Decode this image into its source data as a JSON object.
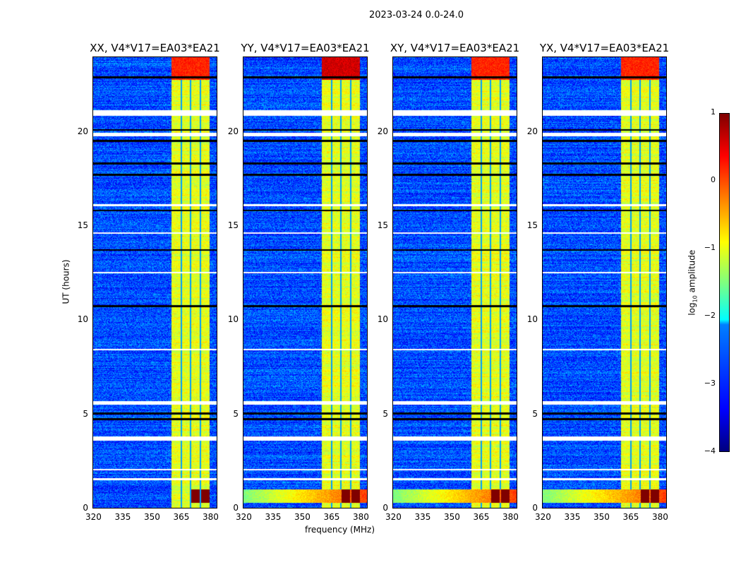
{
  "chart_data": {
    "type": "heatmap",
    "title": "2023-03-24 0.0-24.0",
    "xlabel": "frequency (MHz)",
    "ylabel": "UT (hours)",
    "xlim": [
      320,
      384
    ],
    "ylim": [
      0,
      24
    ],
    "xticks": [
      "320",
      "335",
      "350",
      "365",
      "380"
    ],
    "xtick_values": [
      320,
      335,
      350,
      365,
      380
    ],
    "yticks": [
      "0",
      "5",
      "10",
      "15",
      "20"
    ],
    "ytick_values": [
      0,
      5,
      10,
      15,
      20
    ],
    "panels": [
      {
        "title": "XX, V4*V17=EA03*EA21",
        "top_band_level": 0.2,
        "night_level": 1.0
      },
      {
        "title": "YY, V4*V17=EA03*EA21",
        "top_band_level": 0.6,
        "night_level": 1.0
      },
      {
        "title": "XY, V4*V17=EA03*EA21",
        "top_band_level": 0.2,
        "night_level": 1.0
      },
      {
        "title": "YX, V4*V17=EA03*EA21",
        "top_band_level": 0.2,
        "night_level": 1.0
      }
    ],
    "background_level": -3.0,
    "band_mhz": [
      360.4,
      380.0
    ],
    "band_level": -1.0,
    "channel_gaps_mhz": [
      365.5,
      370.3,
      375.3
    ],
    "flagged_hours": [
      [
        20.9,
        21.2
      ],
      [
        19.8,
        20.0
      ],
      [
        12.5,
        12.6
      ],
      [
        3.6,
        3.8
      ],
      [
        5.5,
        5.7
      ],
      [
        16.1,
        16.2
      ],
      [
        14.6,
        14.7
      ],
      [
        8.4,
        8.5
      ],
      [
        1.5,
        1.6
      ],
      [
        2.0,
        2.1
      ]
    ],
    "dropout_hours": [
      [
        19.5,
        19.6
      ],
      [
        17.7,
        17.8
      ],
      [
        15.8,
        15.9
      ],
      [
        13.7,
        13.8
      ],
      [
        10.7,
        10.8
      ],
      [
        5.0,
        5.1
      ],
      [
        4.7,
        4.8
      ],
      [
        22.9,
        23.0
      ],
      [
        20.1,
        20.2
      ],
      [
        18.3,
        18.4
      ]
    ],
    "night_feature_hours": [
      0.3,
      1.0
    ],
    "colorbar": {
      "label": "log10 amplitude",
      "label_main": "log",
      "label_sub": "10",
      "label_rest": " amplitude",
      "range": [
        -4,
        1
      ],
      "ticks": [
        "1",
        "0",
        "−1",
        "−2",
        "−3",
        "−4"
      ],
      "tick_values": [
        1,
        0,
        -1,
        -2,
        -3,
        -4
      ],
      "colormap": "jet"
    }
  }
}
